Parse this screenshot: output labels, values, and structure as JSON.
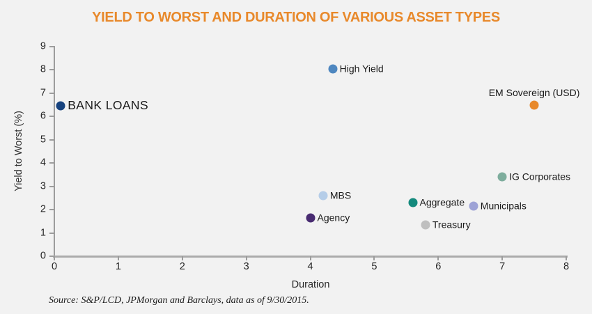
{
  "chart_data": {
    "type": "scatter",
    "title": "YIELD TO WORST AND DURATION OF VARIOUS ASSET TYPES",
    "xlabel": "Duration",
    "ylabel": "Yield to Worst (%)",
    "xlim": [
      0,
      8
    ],
    "ylim": [
      0,
      9
    ],
    "x_ticks": [
      0,
      1,
      2,
      3,
      4,
      5,
      6,
      7,
      8
    ],
    "y_ticks": [
      0,
      1,
      2,
      3,
      4,
      5,
      6,
      7,
      8,
      9
    ],
    "grid": false,
    "legend": "none (direct point labels)",
    "source": "Source: S&P/LCD, JPMorgan and Barclays, data as of 9/30/2015.",
    "points": [
      {
        "label": "BANK LOANS",
        "x": 0.1,
        "y": 6.45,
        "color": "#17437f",
        "label_position": "right",
        "emphasis": true
      },
      {
        "label": "High Yield",
        "x": 4.35,
        "y": 8.05,
        "color": "#4e87c0",
        "label_position": "right",
        "emphasis": false
      },
      {
        "label": "EM Sovereign (USD)",
        "x": 7.5,
        "y": 6.5,
        "color": "#e8892b",
        "label_position": "above",
        "emphasis": false
      },
      {
        "label": "IG Corporates",
        "x": 7.0,
        "y": 3.4,
        "color": "#7ead9d",
        "label_position": "right",
        "emphasis": false
      },
      {
        "label": "MBS",
        "x": 4.2,
        "y": 2.6,
        "color": "#b5cde8",
        "label_position": "right",
        "emphasis": false
      },
      {
        "label": "Aggregate",
        "x": 5.6,
        "y": 2.3,
        "color": "#148a7d",
        "label_position": "right",
        "emphasis": false
      },
      {
        "label": "Municipals",
        "x": 6.55,
        "y": 2.15,
        "color": "#9ea3d6",
        "label_position": "right",
        "emphasis": false
      },
      {
        "label": "Agency",
        "x": 4.0,
        "y": 1.65,
        "color": "#482b71",
        "label_position": "right",
        "emphasis": false
      },
      {
        "label": "Treasury",
        "x": 5.8,
        "y": 1.35,
        "color": "#bfbfbf",
        "label_position": "right",
        "emphasis": false
      }
    ],
    "colors": {
      "title": "#e8892b",
      "axis_line": "#ababab",
      "tick_text": "#262626",
      "background": "#f2f2f2"
    }
  }
}
